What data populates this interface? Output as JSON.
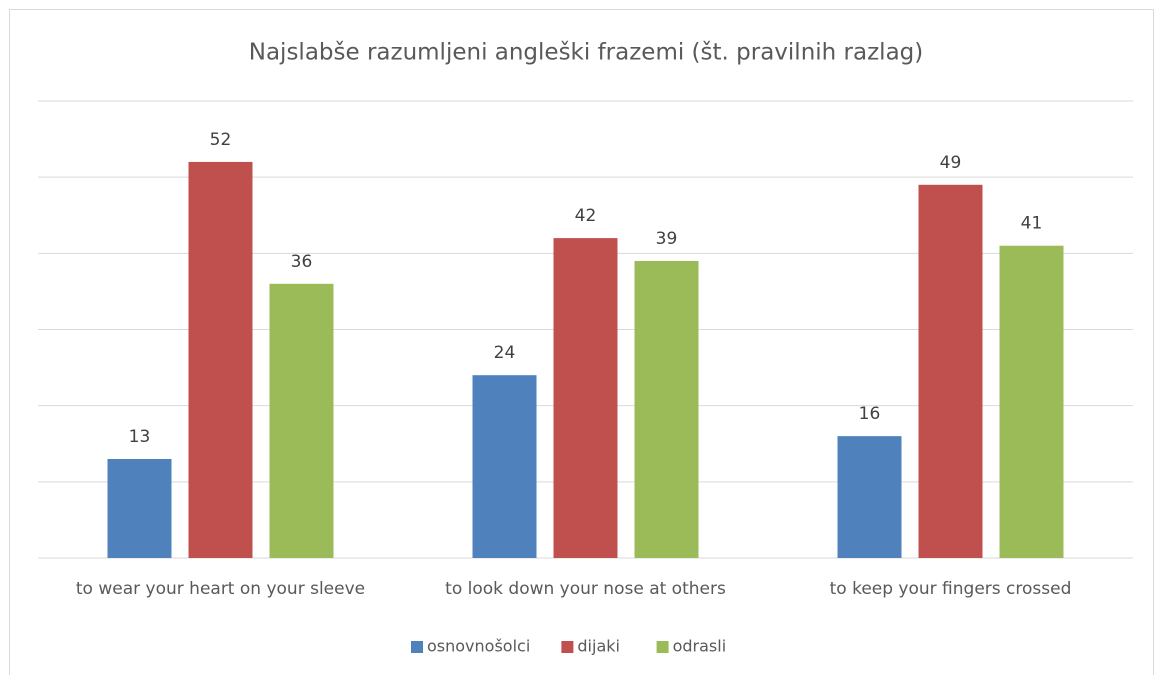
{
  "chart_data": {
    "type": "bar",
    "title": "Najslabše razumljeni angleški frazemi (št. pravilnih razlag)",
    "categories": [
      "to wear your heart on your sleeve",
      "to look down your nose at others",
      "to keep your fingers crossed"
    ],
    "series": [
      {
        "name": "osnovnošolci",
        "color": "#4f81bd",
        "values": [
          13,
          24,
          16
        ]
      },
      {
        "name": "dijaki",
        "color": "#c0504d",
        "values": [
          52,
          42,
          49
        ]
      },
      {
        "name": "odrasli",
        "color": "#9bbb59",
        "values": [
          36,
          39,
          41
        ]
      }
    ],
    "ylim": [
      0,
      60
    ],
    "yticks": [
      0,
      10,
      20,
      30,
      40,
      50,
      60
    ],
    "grid": true,
    "legend": "bottom"
  }
}
